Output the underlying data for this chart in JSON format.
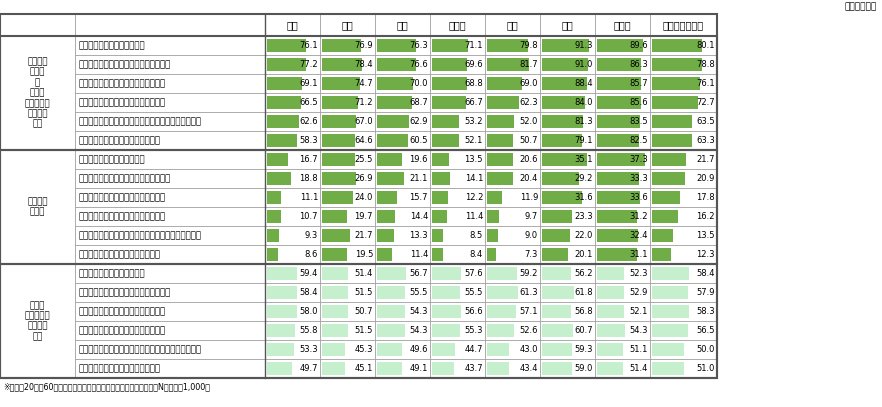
{
  "unit_label": "（単位：％）",
  "footer": "※各国、20代～60代の回答を各年代の人口に応じ加重平均した値。N値は各国1,000。",
  "countries": [
    "日本",
    "米国",
    "英国",
    "ドイツ",
    "韓国",
    "中国",
    "インド",
    "オーストラリア"
  ],
  "row_groups": [
    {
      "group_label": "提供して\nもよい\n＋\n条件に\nよっては提\n供しても\nよい",
      "rows": [
        {
          "label": "自分へのサービスが向上する",
          "values": [
            76.1,
            76.9,
            76.3,
            71.1,
            79.8,
            91.3,
            89.6,
            80.1
          ]
        },
        {
          "label": "自分への経済的なメリットが受けられる",
          "values": [
            77.2,
            78.4,
            76.6,
            69.6,
            81.7,
            91.0,
            86.3,
            78.8
          ]
        },
        {
          "label": "製品の機能向上やサービス品質の向上",
          "values": [
            69.1,
            74.7,
            70.0,
            68.8,
            69.0,
            88.4,
            85.7,
            76.1
          ]
        },
        {
          "label": "新商品や新しいサービスの開発に活用",
          "values": [
            66.5,
            71.2,
            68.7,
            66.7,
            62.3,
            84.0,
            85.6,
            72.7
          ]
        },
        {
          "label": "企業活動の分析や精度の高いマーケティングへの活用",
          "values": [
            62.6,
            67.0,
            62.9,
            53.2,
            52.0,
            81.3,
            83.5,
            63.5
          ]
        },
        {
          "label": "企業の経営方針の策定・判断に活用",
          "values": [
            58.3,
            64.6,
            60.5,
            52.1,
            50.7,
            79.1,
            82.5,
            63.3
          ]
        }
      ],
      "bar_color": "#70ad47",
      "bar_max": 100
    },
    {
      "group_label": "提供して\nもよい",
      "rows": [
        {
          "label": "自分へのサービスが向上する",
          "values": [
            16.7,
            25.5,
            19.6,
            13.5,
            20.6,
            35.1,
            37.3,
            21.7
          ]
        },
        {
          "label": "自分への経済的なメリットが受けられる",
          "values": [
            18.8,
            26.9,
            21.1,
            14.1,
            20.4,
            29.2,
            33.3,
            20.9
          ]
        },
        {
          "label": "製品の機能向上やサービス品質の向上",
          "values": [
            11.1,
            24.0,
            15.7,
            12.2,
            11.9,
            31.6,
            33.6,
            17.8
          ]
        },
        {
          "label": "新商品や新しいサービスの開発に活用",
          "values": [
            10.7,
            19.7,
            14.4,
            11.4,
            9.7,
            23.3,
            31.2,
            16.2
          ]
        },
        {
          "label": "企業活動の分析や精度の高いマーケティングへの活用",
          "values": [
            9.3,
            21.7,
            13.3,
            8.5,
            9.0,
            22.0,
            32.4,
            13.5
          ]
        },
        {
          "label": "企業の経営方針の策定・判断に活用",
          "values": [
            8.6,
            19.5,
            11.4,
            8.4,
            7.3,
            20.1,
            31.1,
            12.3
          ]
        }
      ],
      "bar_color": "#70ad47",
      "bar_max": 40
    },
    {
      "group_label": "条件に\nよっては提\n供しても\nよい",
      "rows": [
        {
          "label": "自分へのサービスが向上する",
          "values": [
            59.4,
            51.4,
            56.7,
            57.6,
            59.2,
            56.2,
            52.3,
            58.4
          ]
        },
        {
          "label": "自分への経済的なメリットが受けられる",
          "values": [
            58.4,
            51.5,
            55.5,
            55.5,
            61.3,
            61.8,
            52.9,
            57.9
          ]
        },
        {
          "label": "製品の機能向上やサービス品質の向上",
          "values": [
            58.0,
            50.7,
            54.3,
            56.6,
            57.1,
            56.8,
            52.1,
            58.3
          ]
        },
        {
          "label": "新商品や新しいサービスの開発に活用",
          "values": [
            55.8,
            51.5,
            54.3,
            55.3,
            52.6,
            60.7,
            54.3,
            56.5
          ]
        },
        {
          "label": "企業活動の分析や精度の高いマーケティングへの活用",
          "values": [
            53.3,
            45.3,
            49.6,
            44.7,
            43.0,
            59.3,
            51.1,
            50.0
          ]
        },
        {
          "label": "企業の経営方針の策定・判断に活用",
          "values": [
            49.7,
            45.1,
            49.1,
            43.7,
            43.4,
            59.0,
            51.4,
            51.0
          ]
        }
      ],
      "bar_color": "#c6efce",
      "bar_max": 100
    }
  ]
}
